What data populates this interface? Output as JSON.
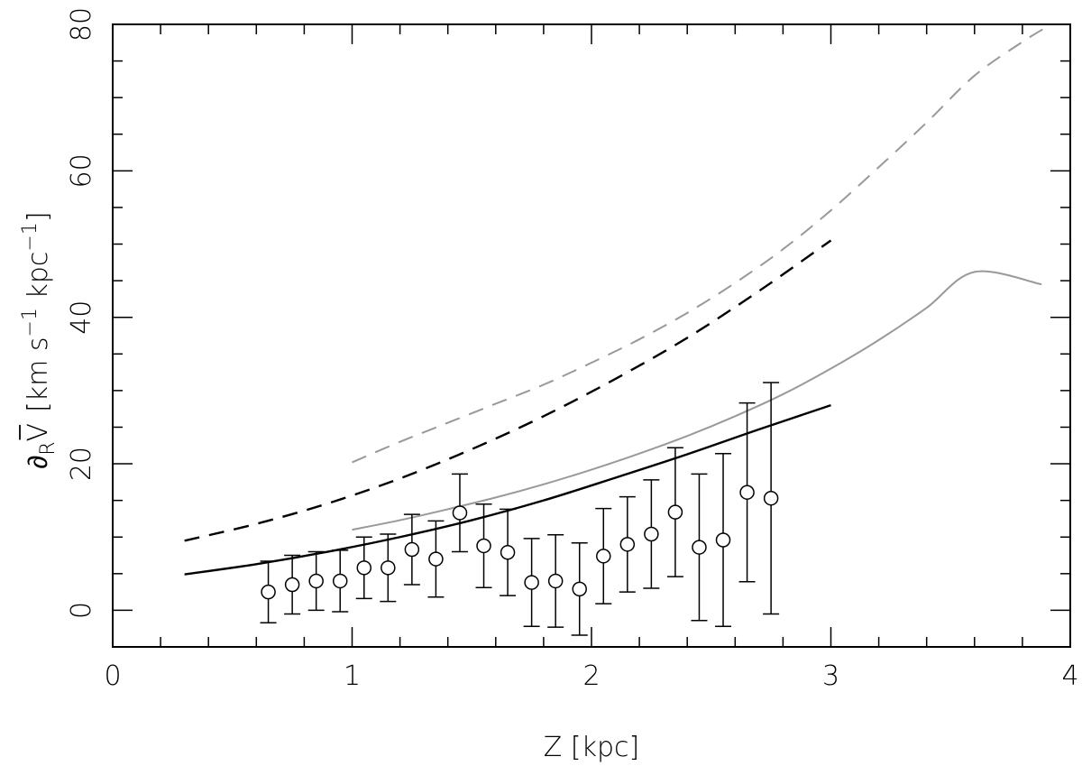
{
  "chart_data": {
    "type": "scatter",
    "title": "",
    "xlabel": "Z [kpc]",
    "ylabel": {
      "symbol": "∂",
      "subscript": "R",
      "variable": "V",
      "unit_open": "[km s",
      "exp1": "−1",
      "unit_mid": " kpc",
      "exp2": "−1",
      "unit_close": "]"
    },
    "xlim": [
      0,
      4
    ],
    "ylim": [
      -5,
      80
    ],
    "x_ticks": [
      0,
      1,
      2,
      3,
      4
    ],
    "x_tick_labels": [
      "0",
      "1",
      "2",
      "3",
      "4"
    ],
    "y_ticks": [
      0,
      20,
      40,
      60,
      80
    ],
    "y_tick_labels": [
      "0",
      "20",
      "40",
      "60",
      "80"
    ],
    "x_minor_step": 0.2,
    "y_minor_step": 5,
    "grid": false,
    "colors": {
      "black": "#000000",
      "gray": "#999999"
    },
    "series": [
      {
        "style": "points-errorbars",
        "color": "#000000",
        "x": [
          0.65,
          0.75,
          0.85,
          0.95,
          1.05,
          1.15,
          1.25,
          1.35,
          1.45,
          1.55,
          1.65,
          1.75,
          1.85,
          1.95,
          2.05,
          2.15,
          2.25,
          2.35,
          2.45,
          2.55,
          2.65,
          2.75
        ],
        "y": [
          2.5,
          3.5,
          4.0,
          4.0,
          5.8,
          5.8,
          8.3,
          7.0,
          13.3,
          8.8,
          7.9,
          3.8,
          4.0,
          2.9,
          7.4,
          9.0,
          10.4,
          13.4,
          8.6,
          9.6,
          16.1,
          15.3
        ],
        "yerr": [
          4.2,
          4.0,
          4.0,
          4.2,
          4.2,
          4.6,
          4.8,
          5.2,
          5.3,
          5.7,
          5.9,
          6.0,
          6.3,
          6.3,
          6.5,
          6.5,
          7.4,
          8.8,
          10.0,
          11.8,
          12.2,
          15.8
        ]
      },
      {
        "style": "line-solid",
        "color": "#999999",
        "x": [
          1.0,
          1.2,
          1.4,
          1.6,
          1.8,
          2.0,
          2.2,
          2.4,
          2.6,
          2.8,
          3.0,
          3.2,
          3.4,
          3.6,
          3.88
        ],
        "y": [
          11.0,
          12.3,
          13.8,
          15.4,
          17.2,
          19.2,
          21.4,
          23.8,
          26.5,
          29.5,
          33.0,
          36.9,
          41.3,
          46.2,
          44.5
        ]
      },
      {
        "style": "line-dashed",
        "color": "#999999",
        "x": [
          1.0,
          1.2,
          1.4,
          1.6,
          1.8,
          2.0,
          2.2,
          2.4,
          2.6,
          2.8,
          3.0,
          3.2,
          3.4,
          3.6,
          3.8,
          3.92
        ],
        "y": [
          20.2,
          23.0,
          25.6,
          28.2,
          30.8,
          33.8,
          37.0,
          40.6,
          44.7,
          49.3,
          54.6,
          60.5,
          66.6,
          73.0,
          77.6,
          80.0
        ]
      },
      {
        "style": "line-solid-thick",
        "color": "#000000",
        "x": [
          0.3,
          0.6,
          0.9,
          1.2,
          1.5,
          1.8,
          2.1,
          2.4,
          2.7,
          3.0
        ],
        "y": [
          4.9,
          6.3,
          8.0,
          10.0,
          12.3,
          15.0,
          18.1,
          21.3,
          24.7,
          28.0
        ]
      },
      {
        "style": "line-dashed-thick",
        "color": "#000000",
        "x": [
          0.3,
          0.6,
          0.9,
          1.2,
          1.5,
          1.8,
          2.1,
          2.4,
          2.7,
          3.0
        ],
        "y": [
          9.5,
          11.8,
          14.6,
          18.0,
          22.0,
          26.5,
          31.6,
          37.2,
          43.6,
          50.5
        ]
      }
    ]
  }
}
